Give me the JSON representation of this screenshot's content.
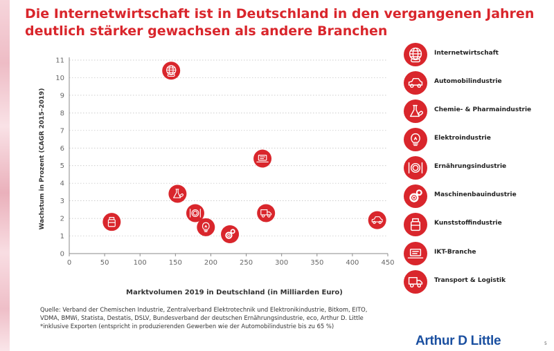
{
  "title": "Die Internetwirtschaft ist in Deutschland in den vergangenen Jahren deutlich stärker gewachsen als andere Branchen",
  "chart_data": {
    "type": "scatter",
    "xlabel": "Marktvolumen 2019 in Deutschland (in Milliarden Euro)",
    "ylabel": "Wachstum in Prozent (CAGR 2015–2019)",
    "xlim": [
      0,
      450
    ],
    "ylim": [
      0,
      11
    ],
    "xticks": [
      "0",
      "50",
      "100",
      "150",
      "200",
      "250",
      "300",
      "350",
      "400",
      "450"
    ],
    "yticks": [
      "0",
      "1",
      "2",
      "3",
      "4",
      "5",
      "6",
      "7",
      "8",
      "9",
      "10",
      "11"
    ],
    "grid": "horizontal-dotted",
    "points": [
      {
        "name": "Internetwirtschaft",
        "icon": "globe-icon",
        "x": 144,
        "y": 10.4
      },
      {
        "name": "Automobilindustrie",
        "icon": "car-icon",
        "x": 435,
        "y": 1.9
      },
      {
        "name": "Chemie- & Pharmaindustrie",
        "icon": "flask-icon",
        "x": 153,
        "y": 3.4
      },
      {
        "name": "Elektroindustrie",
        "icon": "lightbulb-icon",
        "x": 193,
        "y": 1.5
      },
      {
        "name": "Ernährungsindustrie",
        "icon": "plate-icon",
        "x": 178,
        "y": 2.3
      },
      {
        "name": "Maschinenbauindustrie",
        "icon": "gears-icon",
        "x": 227,
        "y": 1.1
      },
      {
        "name": "Kunststoffindustrie",
        "icon": "container-icon",
        "x": 60,
        "y": 1.8
      },
      {
        "name": "IKT-Branche",
        "icon": "laptop-icon",
        "x": 273,
        "y": 5.4
      },
      {
        "name": "Transport & Logistik",
        "icon": "truck-icon",
        "x": 278,
        "y": 2.3
      }
    ]
  },
  "legend": [
    {
      "label": "Internetwirtschaft",
      "icon": "globe-icon"
    },
    {
      "label": "Automobilindustrie",
      "icon": "car-icon"
    },
    {
      "label": "Chemie- & Pharmaindustrie",
      "icon": "flask-icon"
    },
    {
      "label": "Elektroindustrie",
      "icon": "lightbulb-icon"
    },
    {
      "label": "Ernährungsindustrie",
      "icon": "plate-icon"
    },
    {
      "label": "Maschinenbauindustrie",
      "icon": "gears-icon"
    },
    {
      "label": "Kunststoffindustrie",
      "icon": "container-icon"
    },
    {
      "label": "IKT-Branche",
      "icon": "laptop-icon"
    },
    {
      "label": "Transport & Logistik",
      "icon": "truck-icon"
    }
  ],
  "source_lines": [
    "Quelle: Verband der Chemischen Industrie, Zentralverband Elektrotechnik und Elektronikindustrie, Bitkom, EITO,",
    "VDMA, BMWi, Statista, Destatis, DSLV, Bundesverband der deutschen Ernährungsindustrie, eco, Arthur D. Little",
    "*inklusive Exporten (entspricht in produzierenden Gewerben wie der Automobilindustrie bis zu 65 %)"
  ],
  "logo": "Arthur D Little",
  "page_number": "5",
  "colors": {
    "accent": "#d9262c",
    "logo": "#1a4fa0",
    "axis": "#8a8a8a",
    "grid": "#bbbbbb"
  }
}
